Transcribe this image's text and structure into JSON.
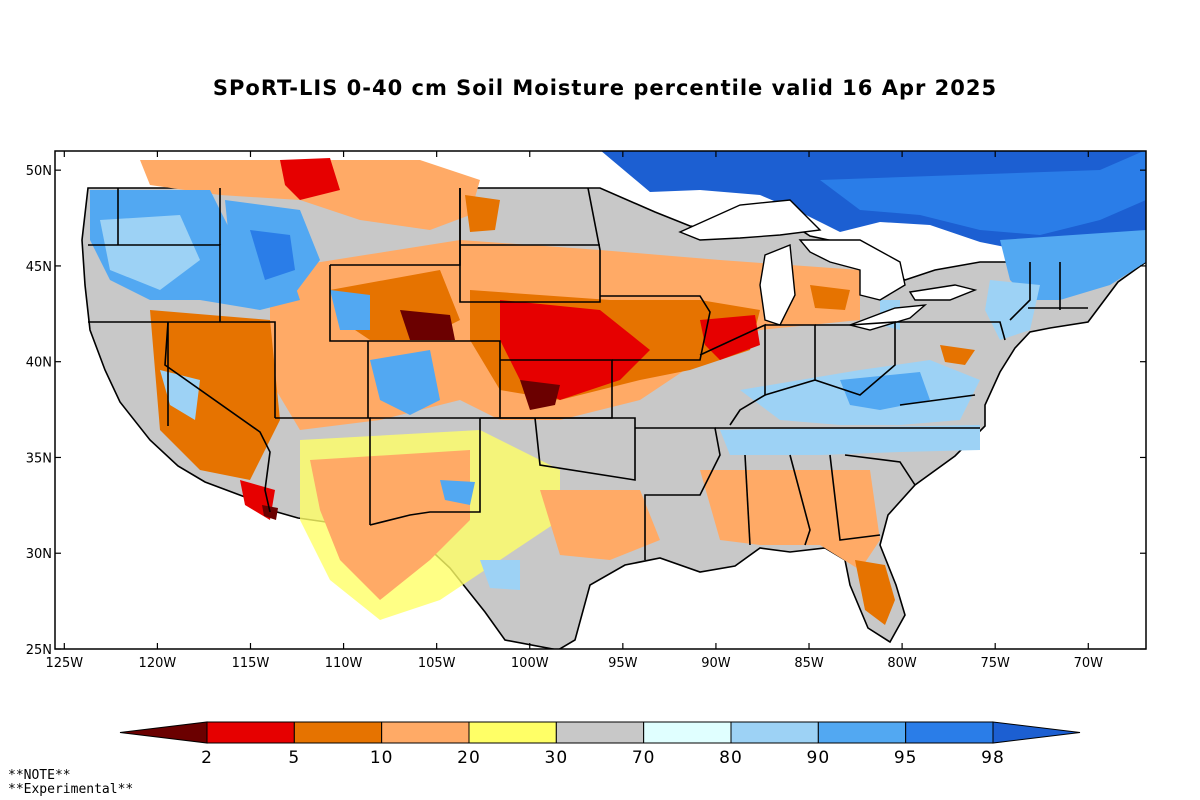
{
  "title": "SPoRT-LIS 0-40 cm Soil Moisture percentile valid 16 Apr 2025",
  "notes": [
    "**NOTE**",
    "**Experimental**"
  ],
  "map": {
    "lat_labels": [
      "50N",
      "45N",
      "40N",
      "35N",
      "30N",
      "25N"
    ],
    "lat_values": [
      50,
      45,
      40,
      35,
      30,
      25
    ],
    "lon_labels": [
      "125W",
      "120W",
      "115W",
      "110W",
      "105W",
      "100W",
      "95W",
      "90W",
      "85W",
      "80W",
      "75W",
      "70W"
    ],
    "lon_values": [
      -125,
      -120,
      -115,
      -110,
      -105,
      -100,
      -95,
      -90,
      -85,
      -80,
      -75,
      -70
    ],
    "extent": {
      "lon_min": -125.5,
      "lon_max": -66.9,
      "lat_min": 25,
      "lat_max": 51
    }
  },
  "colorbar": {
    "labels": [
      "2",
      "5",
      "10",
      "20",
      "30",
      "70",
      "80",
      "90",
      "95",
      "98"
    ],
    "colors": [
      "#6b0000",
      "#e60000",
      "#e67300",
      "#ffaa66",
      "#ffff66",
      "#c8c8c8",
      "#e0ffff",
      "#9dd2f5",
      "#52a8f2",
      "#2a7de8",
      "#1c5fd2"
    ]
  }
}
